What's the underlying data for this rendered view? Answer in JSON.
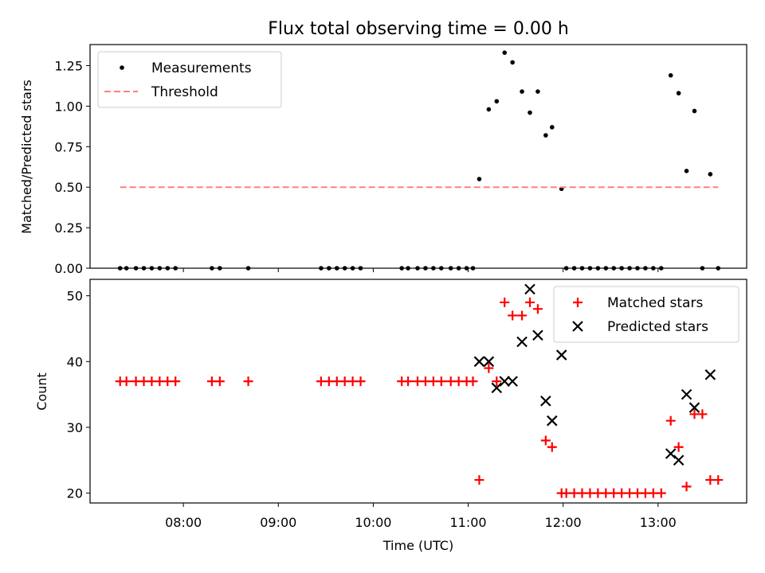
{
  "chart_data": [
    {
      "type": "scatter",
      "title": "Flux total observing time = 0.00 h",
      "xlabel": "",
      "ylabel": "Matched/Predicted stars",
      "xlim": [
        "07:01",
        "13:56"
      ],
      "ylim": [
        0,
        1.38
      ],
      "yticks": [
        "0.00",
        "0.25",
        "0.50",
        "0.75",
        "1.00",
        "1.25"
      ],
      "ytick_values": [
        0,
        0.25,
        0.5,
        0.75,
        1.0,
        1.25
      ],
      "legend_position": "top-left",
      "series": [
        {
          "name": "Measurements",
          "marker": "dot",
          "color": "#000000",
          "points": [
            [
              "07:20",
              0
            ],
            [
              "07:24",
              0
            ],
            [
              "07:30",
              0
            ],
            [
              "07:35",
              0
            ],
            [
              "07:40",
              0
            ],
            [
              "07:45",
              0
            ],
            [
              "07:50",
              0
            ],
            [
              "07:55",
              0
            ],
            [
              "08:18",
              0
            ],
            [
              "08:23",
              0
            ],
            [
              "08:41",
              0
            ],
            [
              "09:27",
              0
            ],
            [
              "09:32",
              0
            ],
            [
              "09:37",
              0
            ],
            [
              "09:42",
              0
            ],
            [
              "09:47",
              0
            ],
            [
              "09:52",
              0
            ],
            [
              "10:18",
              0
            ],
            [
              "10:22",
              0
            ],
            [
              "10:28",
              0
            ],
            [
              "10:33",
              0
            ],
            [
              "10:38",
              0
            ],
            [
              "10:43",
              0
            ],
            [
              "10:49",
              0
            ],
            [
              "10:54",
              0
            ],
            [
              "10:59",
              0
            ],
            [
              "11:03",
              0
            ],
            [
              "11:07",
              0.55
            ],
            [
              "11:13",
              0.98
            ],
            [
              "11:18",
              1.03
            ],
            [
              "11:23",
              1.33
            ],
            [
              "11:28",
              1.27
            ],
            [
              "11:34",
              1.09
            ],
            [
              "11:39",
              0.96
            ],
            [
              "11:44",
              1.09
            ],
            [
              "11:49",
              0.82
            ],
            [
              "11:53",
              0.87
            ],
            [
              "11:59",
              0.49
            ],
            [
              "12:02",
              0
            ],
            [
              "12:07",
              0
            ],
            [
              "12:12",
              0
            ],
            [
              "12:17",
              0
            ],
            [
              "12:22",
              0
            ],
            [
              "12:27",
              0
            ],
            [
              "12:32",
              0
            ],
            [
              "12:37",
              0
            ],
            [
              "12:42",
              0
            ],
            [
              "12:47",
              0
            ],
            [
              "12:52",
              0
            ],
            [
              "12:57",
              0
            ],
            [
              "13:02",
              0
            ],
            [
              "13:08",
              1.19
            ],
            [
              "13:13",
              1.08
            ],
            [
              "13:18",
              0.6
            ],
            [
              "13:23",
              0.97
            ],
            [
              "13:28",
              0
            ],
            [
              "13:33",
              0.58
            ],
            [
              "13:38",
              0
            ]
          ]
        },
        {
          "name": "Threshold",
          "style": "dashed",
          "color": "#ff8080",
          "points": [
            [
              "07:20",
              0.5
            ],
            [
              "13:38",
              0.5
            ]
          ]
        }
      ]
    },
    {
      "type": "scatter",
      "title": "",
      "xlabel": "Time (UTC)",
      "ylabel": "Count",
      "xlim": [
        "07:01",
        "13:56"
      ],
      "ylim": [
        18.5,
        52.5
      ],
      "yticks": [
        "20",
        "30",
        "40",
        "50"
      ],
      "ytick_values": [
        20,
        30,
        40,
        50
      ],
      "xticks": [
        "08:00",
        "09:00",
        "10:00",
        "11:00",
        "12:00",
        "13:00"
      ],
      "legend_position": "top-right",
      "series": [
        {
          "name": "Matched stars",
          "marker": "plus",
          "color": "#ff0000",
          "points": [
            [
              "07:20",
              37
            ],
            [
              "07:24",
              37
            ],
            [
              "07:30",
              37
            ],
            [
              "07:35",
              37
            ],
            [
              "07:40",
              37
            ],
            [
              "07:45",
              37
            ],
            [
              "07:50",
              37
            ],
            [
              "07:55",
              37
            ],
            [
              "08:18",
              37
            ],
            [
              "08:23",
              37
            ],
            [
              "08:41",
              37
            ],
            [
              "09:27",
              37
            ],
            [
              "09:32",
              37
            ],
            [
              "09:37",
              37
            ],
            [
              "09:42",
              37
            ],
            [
              "09:47",
              37
            ],
            [
              "09:52",
              37
            ],
            [
              "10:18",
              37
            ],
            [
              "10:22",
              37
            ],
            [
              "10:28",
              37
            ],
            [
              "10:33",
              37
            ],
            [
              "10:38",
              37
            ],
            [
              "10:43",
              37
            ],
            [
              "10:49",
              37
            ],
            [
              "10:54",
              37
            ],
            [
              "10:59",
              37
            ],
            [
              "11:03",
              37
            ],
            [
              "11:07",
              22
            ],
            [
              "11:13",
              39
            ],
            [
              "11:18",
              37
            ],
            [
              "11:23",
              49
            ],
            [
              "11:28",
              47
            ],
            [
              "11:34",
              47
            ],
            [
              "11:39",
              49
            ],
            [
              "11:44",
              48
            ],
            [
              "11:49",
              28
            ],
            [
              "11:53",
              27
            ],
            [
              "11:59",
              20
            ],
            [
              "12:02",
              20
            ],
            [
              "12:07",
              20
            ],
            [
              "12:12",
              20
            ],
            [
              "12:17",
              20
            ],
            [
              "12:22",
              20
            ],
            [
              "12:27",
              20
            ],
            [
              "12:32",
              20
            ],
            [
              "12:37",
              20
            ],
            [
              "12:42",
              20
            ],
            [
              "12:47",
              20
            ],
            [
              "12:52",
              20
            ],
            [
              "12:57",
              20
            ],
            [
              "13:02",
              20
            ],
            [
              "13:08",
              31
            ],
            [
              "13:13",
              27
            ],
            [
              "13:18",
              21
            ],
            [
              "13:23",
              32
            ],
            [
              "13:28",
              32
            ],
            [
              "13:33",
              22
            ],
            [
              "13:38",
              22
            ]
          ]
        },
        {
          "name": "Predicted stars",
          "marker": "x",
          "color": "#000000",
          "points": [
            [
              "11:07",
              40
            ],
            [
              "11:13",
              40
            ],
            [
              "11:18",
              36
            ],
            [
              "11:23",
              37
            ],
            [
              "11:28",
              37
            ],
            [
              "11:34",
              43
            ],
            [
              "11:39",
              51
            ],
            [
              "11:44",
              44
            ],
            [
              "11:49",
              34
            ],
            [
              "11:53",
              31
            ],
            [
              "11:59",
              41
            ],
            [
              "13:08",
              26
            ],
            [
              "13:13",
              25
            ],
            [
              "13:18",
              35
            ],
            [
              "13:23",
              33
            ],
            [
              "13:33",
              38
            ]
          ]
        }
      ]
    }
  ]
}
